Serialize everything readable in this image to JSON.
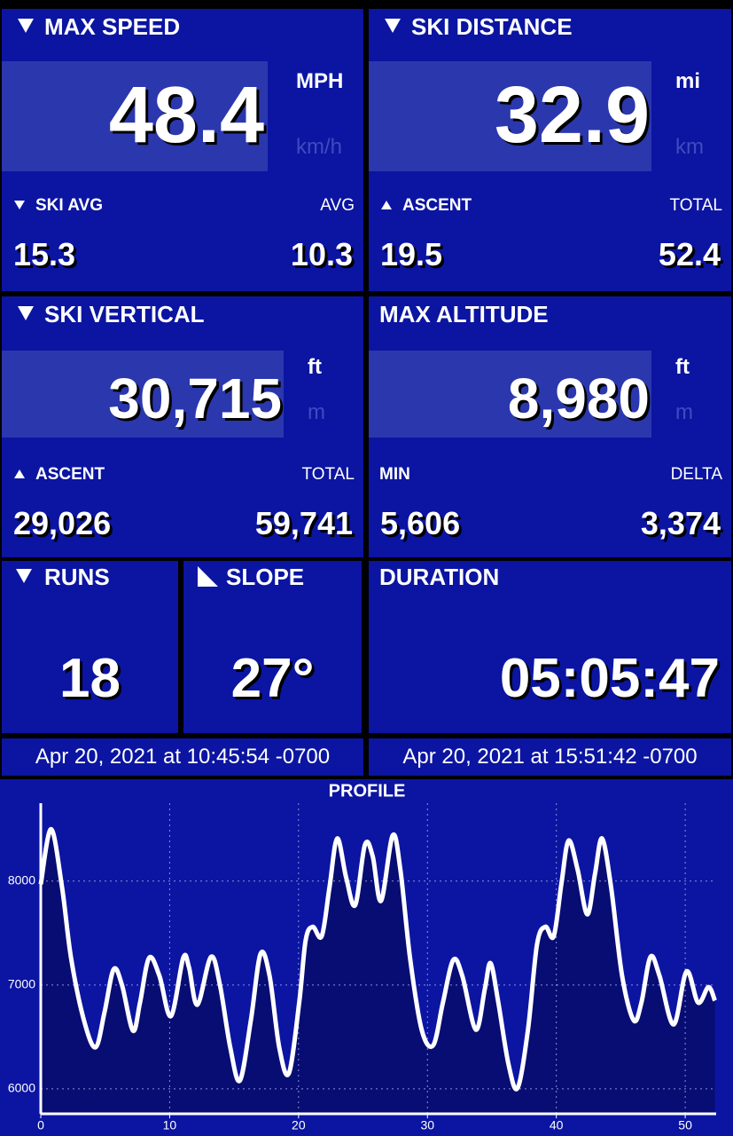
{
  "tiles": [
    {
      "title": "MAX SPEED",
      "value": "48.4",
      "unit": "MPH",
      "alt_unit": "km/h",
      "left_label": "SKI AVG",
      "left_value": "15.3",
      "right_label": "AVG",
      "right_value": "10.3"
    },
    {
      "title": "SKI DISTANCE",
      "value": "32.9",
      "unit": "mi",
      "alt_unit": "km",
      "left_label": "ASCENT",
      "left_value": "19.5",
      "right_label": "TOTAL",
      "right_value": "52.4"
    },
    {
      "title": "SKI VERTICAL",
      "value": "30,715",
      "unit": "ft",
      "alt_unit": "m",
      "left_label": "ASCENT",
      "left_value": "29,026",
      "right_label": "TOTAL",
      "right_value": "59,741"
    },
    {
      "title": "MAX ALTITUDE",
      "value": "8,980",
      "unit": "ft",
      "alt_unit": "m",
      "left_label": "MIN",
      "left_value": "5,606",
      "right_label": "DELTA",
      "right_value": "3,374"
    },
    {
      "title": "RUNS",
      "value": "18"
    },
    {
      "title": "SLOPE",
      "value": "27°"
    },
    {
      "title": "DURATION",
      "value": "05:05:47"
    }
  ],
  "start_time": "Apr 20, 2021 at 10:45:54 -0700",
  "end_time": "Apr 20, 2021 at 15:51:42 -0700",
  "chart_data": {
    "type": "line",
    "title": "PROFILE",
    "color": "#ffffff",
    "fill": "#070d72",
    "grid": true,
    "x": [
      0,
      0.8,
      1.65,
      2.35,
      3.35,
      4.25,
      4.95,
      5.65,
      6.3,
      7.15,
      7.7,
      8.4,
      9.2,
      10.1,
      11.05,
      11.5,
      12.15,
      13.2,
      13.9,
      14.7,
      15.45,
      16.3,
      17.05,
      17.75,
      18.5,
      19.25,
      20.05,
      20.55,
      21.1,
      21.8,
      22.4,
      23,
      23.7,
      24.4,
      25.15,
      25.75,
      26.4,
      27.3,
      27.9,
      28.65,
      29.55,
      30.45,
      31.2,
      32,
      32.7,
      33.75,
      34.45,
      34.9,
      35.5,
      36.3,
      37,
      37.8,
      38.5,
      39.15,
      39.8,
      40.4,
      40.95,
      41.65,
      42.4,
      43,
      43.55,
      44.25,
      45.1,
      46,
      46.6,
      47.3,
      48,
      49.1,
      50.1,
      51,
      51.8,
      52.3
    ],
    "values": [
      7970,
      8500,
      7940,
      7260,
      6660,
      6400,
      6740,
      7150,
      7000,
      6560,
      6830,
      7260,
      7090,
      6700,
      7260,
      7170,
      6810,
      7270,
      7000,
      6400,
      6080,
      6660,
      7300,
      7090,
      6400,
      6150,
      6830,
      7430,
      7560,
      7470,
      7940,
      8410,
      8030,
      7770,
      8350,
      8240,
      7810,
      8440,
      8110,
      7260,
      6570,
      6420,
      6830,
      7240,
      7090,
      6570,
      6960,
      7210,
      6830,
      6230,
      6010,
      6570,
      7390,
      7560,
      7470,
      7980,
      8390,
      8110,
      7680,
      8070,
      8410,
      7940,
      7090,
      6660,
      6830,
      7270,
      7090,
      6620,
      7130,
      6830,
      6980,
      6850
    ],
    "xlim": [
      0,
      52.4
    ],
    "ylim": [
      5760,
      8750
    ],
    "xticks": [
      0,
      10,
      20,
      30,
      40,
      50
    ],
    "yticks": [
      6000,
      7000,
      8000
    ]
  }
}
